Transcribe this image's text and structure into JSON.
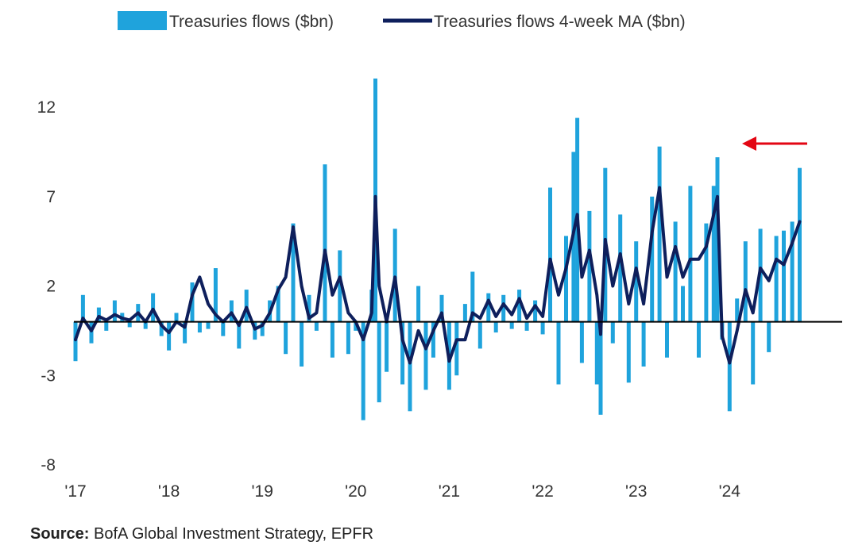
{
  "source": {
    "label": "Source:",
    "text": "BofA Global Investment Strategy, EPFR"
  },
  "colors": {
    "bars": "#1fa3dc",
    "line": "#0e1f5c",
    "zero_line": "#000000",
    "arrow": "#e30613"
  },
  "chart_data": {
    "type": "bar",
    "title": "",
    "xlabel": "",
    "ylabel": "",
    "ylim": [
      -8,
      14
    ],
    "yticks": [
      12,
      7,
      2,
      -3,
      -8
    ],
    "ytick_labels": [
      "12",
      "7",
      "2",
      "-3",
      "-8"
    ],
    "xlim": [
      2017.0,
      2024.95
    ],
    "xticks": [
      2017,
      2018,
      2019,
      2020,
      2021,
      2022,
      2023,
      2024
    ],
    "xtick_labels": [
      "'17",
      "'18",
      "'19",
      "'20",
      "'21",
      "'22",
      "'23",
      "'24"
    ],
    "legend": "top",
    "grid": false,
    "series": [
      {
        "name": "Treasuries flows ($bn)",
        "type": "bar",
        "x": [
          2017.0,
          2017.08,
          2017.17,
          2017.25,
          2017.33,
          2017.42,
          2017.5,
          2017.58,
          2017.67,
          2017.75,
          2017.83,
          2017.92,
          2018.0,
          2018.08,
          2018.17,
          2018.25,
          2018.33,
          2018.42,
          2018.5,
          2018.58,
          2018.67,
          2018.75,
          2018.83,
          2018.92,
          2019.0,
          2019.08,
          2019.17,
          2019.25,
          2019.33,
          2019.42,
          2019.5,
          2019.58,
          2019.67,
          2019.75,
          2019.83,
          2019.92,
          2020.0,
          2020.08,
          2020.17,
          2020.21,
          2020.25,
          2020.33,
          2020.42,
          2020.5,
          2020.58,
          2020.67,
          2020.75,
          2020.83,
          2020.92,
          2021.0,
          2021.08,
          2021.17,
          2021.25,
          2021.33,
          2021.42,
          2021.5,
          2021.58,
          2021.67,
          2021.75,
          2021.83,
          2021.92,
          2022.0,
          2022.08,
          2022.17,
          2022.25,
          2022.33,
          2022.37,
          2022.42,
          2022.5,
          2022.58,
          2022.62,
          2022.67,
          2022.75,
          2022.83,
          2022.92,
          2023.0,
          2023.08,
          2023.17,
          2023.25,
          2023.33,
          2023.42,
          2023.5,
          2023.58,
          2023.67,
          2023.75,
          2023.83,
          2023.87,
          2023.92,
          2024.0,
          2024.08,
          2024.17,
          2024.25,
          2024.33,
          2024.42,
          2024.5,
          2024.58,
          2024.67,
          2024.75
        ],
        "values": [
          -2.2,
          1.5,
          -1.2,
          0.8,
          -0.5,
          1.2,
          0.5,
          -0.3,
          1.0,
          -0.4,
          1.6,
          -0.8,
          -1.6,
          0.5,
          -1.2,
          2.2,
          -0.6,
          -0.4,
          3.0,
          -0.8,
          1.2,
          -1.5,
          1.8,
          -1.0,
          -0.8,
          1.2,
          2.0,
          -1.8,
          5.5,
          -2.5,
          1.5,
          -0.5,
          8.8,
          -2.0,
          4.0,
          -1.8,
          -0.5,
          -5.5,
          1.8,
          13.6,
          -4.5,
          -2.8,
          5.2,
          -3.5,
          -5.0,
          2.0,
          -3.8,
          -2.0,
          1.5,
          -3.8,
          -3.0,
          1.0,
          2.8,
          -1.5,
          1.6,
          -0.6,
          1.5,
          -0.4,
          1.8,
          -0.5,
          1.2,
          -0.7,
          7.5,
          -3.5,
          4.8,
          9.5,
          11.4,
          -2.3,
          6.2,
          -3.5,
          -5.2,
          8.6,
          -1.2,
          6.0,
          -3.4,
          4.5,
          -2.5,
          7.0,
          9.8,
          -2.0,
          5.6,
          2.0,
          7.6,
          -2.0,
          5.5,
          7.6,
          9.2,
          -1.0,
          -5.0,
          1.3,
          4.5,
          -3.5,
          5.2,
          -1.7,
          4.8,
          5.1,
          5.6,
          8.6
        ]
      },
      {
        "name": "Treasuries flows 4-week MA ($bn)",
        "type": "line",
        "x": [
          2017.0,
          2017.08,
          2017.17,
          2017.25,
          2017.33,
          2017.42,
          2017.5,
          2017.58,
          2017.67,
          2017.75,
          2017.83,
          2017.92,
          2018.0,
          2018.08,
          2018.17,
          2018.25,
          2018.33,
          2018.42,
          2018.5,
          2018.58,
          2018.67,
          2018.75,
          2018.83,
          2018.92,
          2019.0,
          2019.08,
          2019.17,
          2019.25,
          2019.33,
          2019.42,
          2019.5,
          2019.58,
          2019.67,
          2019.75,
          2019.83,
          2019.92,
          2020.0,
          2020.08,
          2020.17,
          2020.21,
          2020.25,
          2020.33,
          2020.42,
          2020.5,
          2020.58,
          2020.67,
          2020.75,
          2020.83,
          2020.92,
          2021.0,
          2021.08,
          2021.17,
          2021.25,
          2021.33,
          2021.42,
          2021.5,
          2021.58,
          2021.67,
          2021.75,
          2021.83,
          2021.92,
          2022.0,
          2022.08,
          2022.17,
          2022.25,
          2022.33,
          2022.37,
          2022.42,
          2022.5,
          2022.58,
          2022.62,
          2022.67,
          2022.75,
          2022.83,
          2022.92,
          2023.0,
          2023.08,
          2023.17,
          2023.25,
          2023.33,
          2023.42,
          2023.5,
          2023.58,
          2023.67,
          2023.75,
          2023.83,
          2023.87,
          2023.92,
          2024.0,
          2024.08,
          2024.17,
          2024.25,
          2024.33,
          2024.42,
          2024.5,
          2024.58,
          2024.67,
          2024.75
        ],
        "values": [
          -1.0,
          0.2,
          -0.5,
          0.3,
          0.1,
          0.4,
          0.2,
          0.1,
          0.5,
          0.0,
          0.7,
          -0.2,
          -0.6,
          0.0,
          -0.3,
          1.5,
          2.5,
          1.0,
          0.4,
          0.0,
          0.5,
          -0.2,
          0.8,
          -0.4,
          -0.2,
          0.5,
          1.8,
          2.5,
          5.3,
          2.0,
          0.2,
          0.5,
          4.0,
          1.5,
          2.5,
          0.5,
          0.0,
          -1.0,
          0.5,
          7.0,
          2.0,
          0.0,
          2.5,
          -1.0,
          -2.3,
          -0.5,
          -1.5,
          -0.5,
          0.5,
          -2.2,
          -1.0,
          -1.0,
          0.5,
          0.2,
          1.2,
          0.3,
          1.0,
          0.4,
          1.3,
          0.2,
          0.9,
          0.3,
          3.5,
          1.5,
          3.0,
          5.0,
          6.0,
          2.5,
          4.0,
          1.5,
          -0.7,
          4.6,
          2.0,
          3.8,
          1.0,
          3.0,
          1.0,
          5.0,
          7.5,
          2.5,
          4.2,
          2.5,
          3.5,
          3.5,
          4.2,
          6.0,
          7.0,
          -0.8,
          -2.3,
          -0.5,
          1.8,
          0.5,
          3.0,
          2.3,
          3.5,
          3.2,
          4.4,
          5.6
        ]
      }
    ]
  }
}
